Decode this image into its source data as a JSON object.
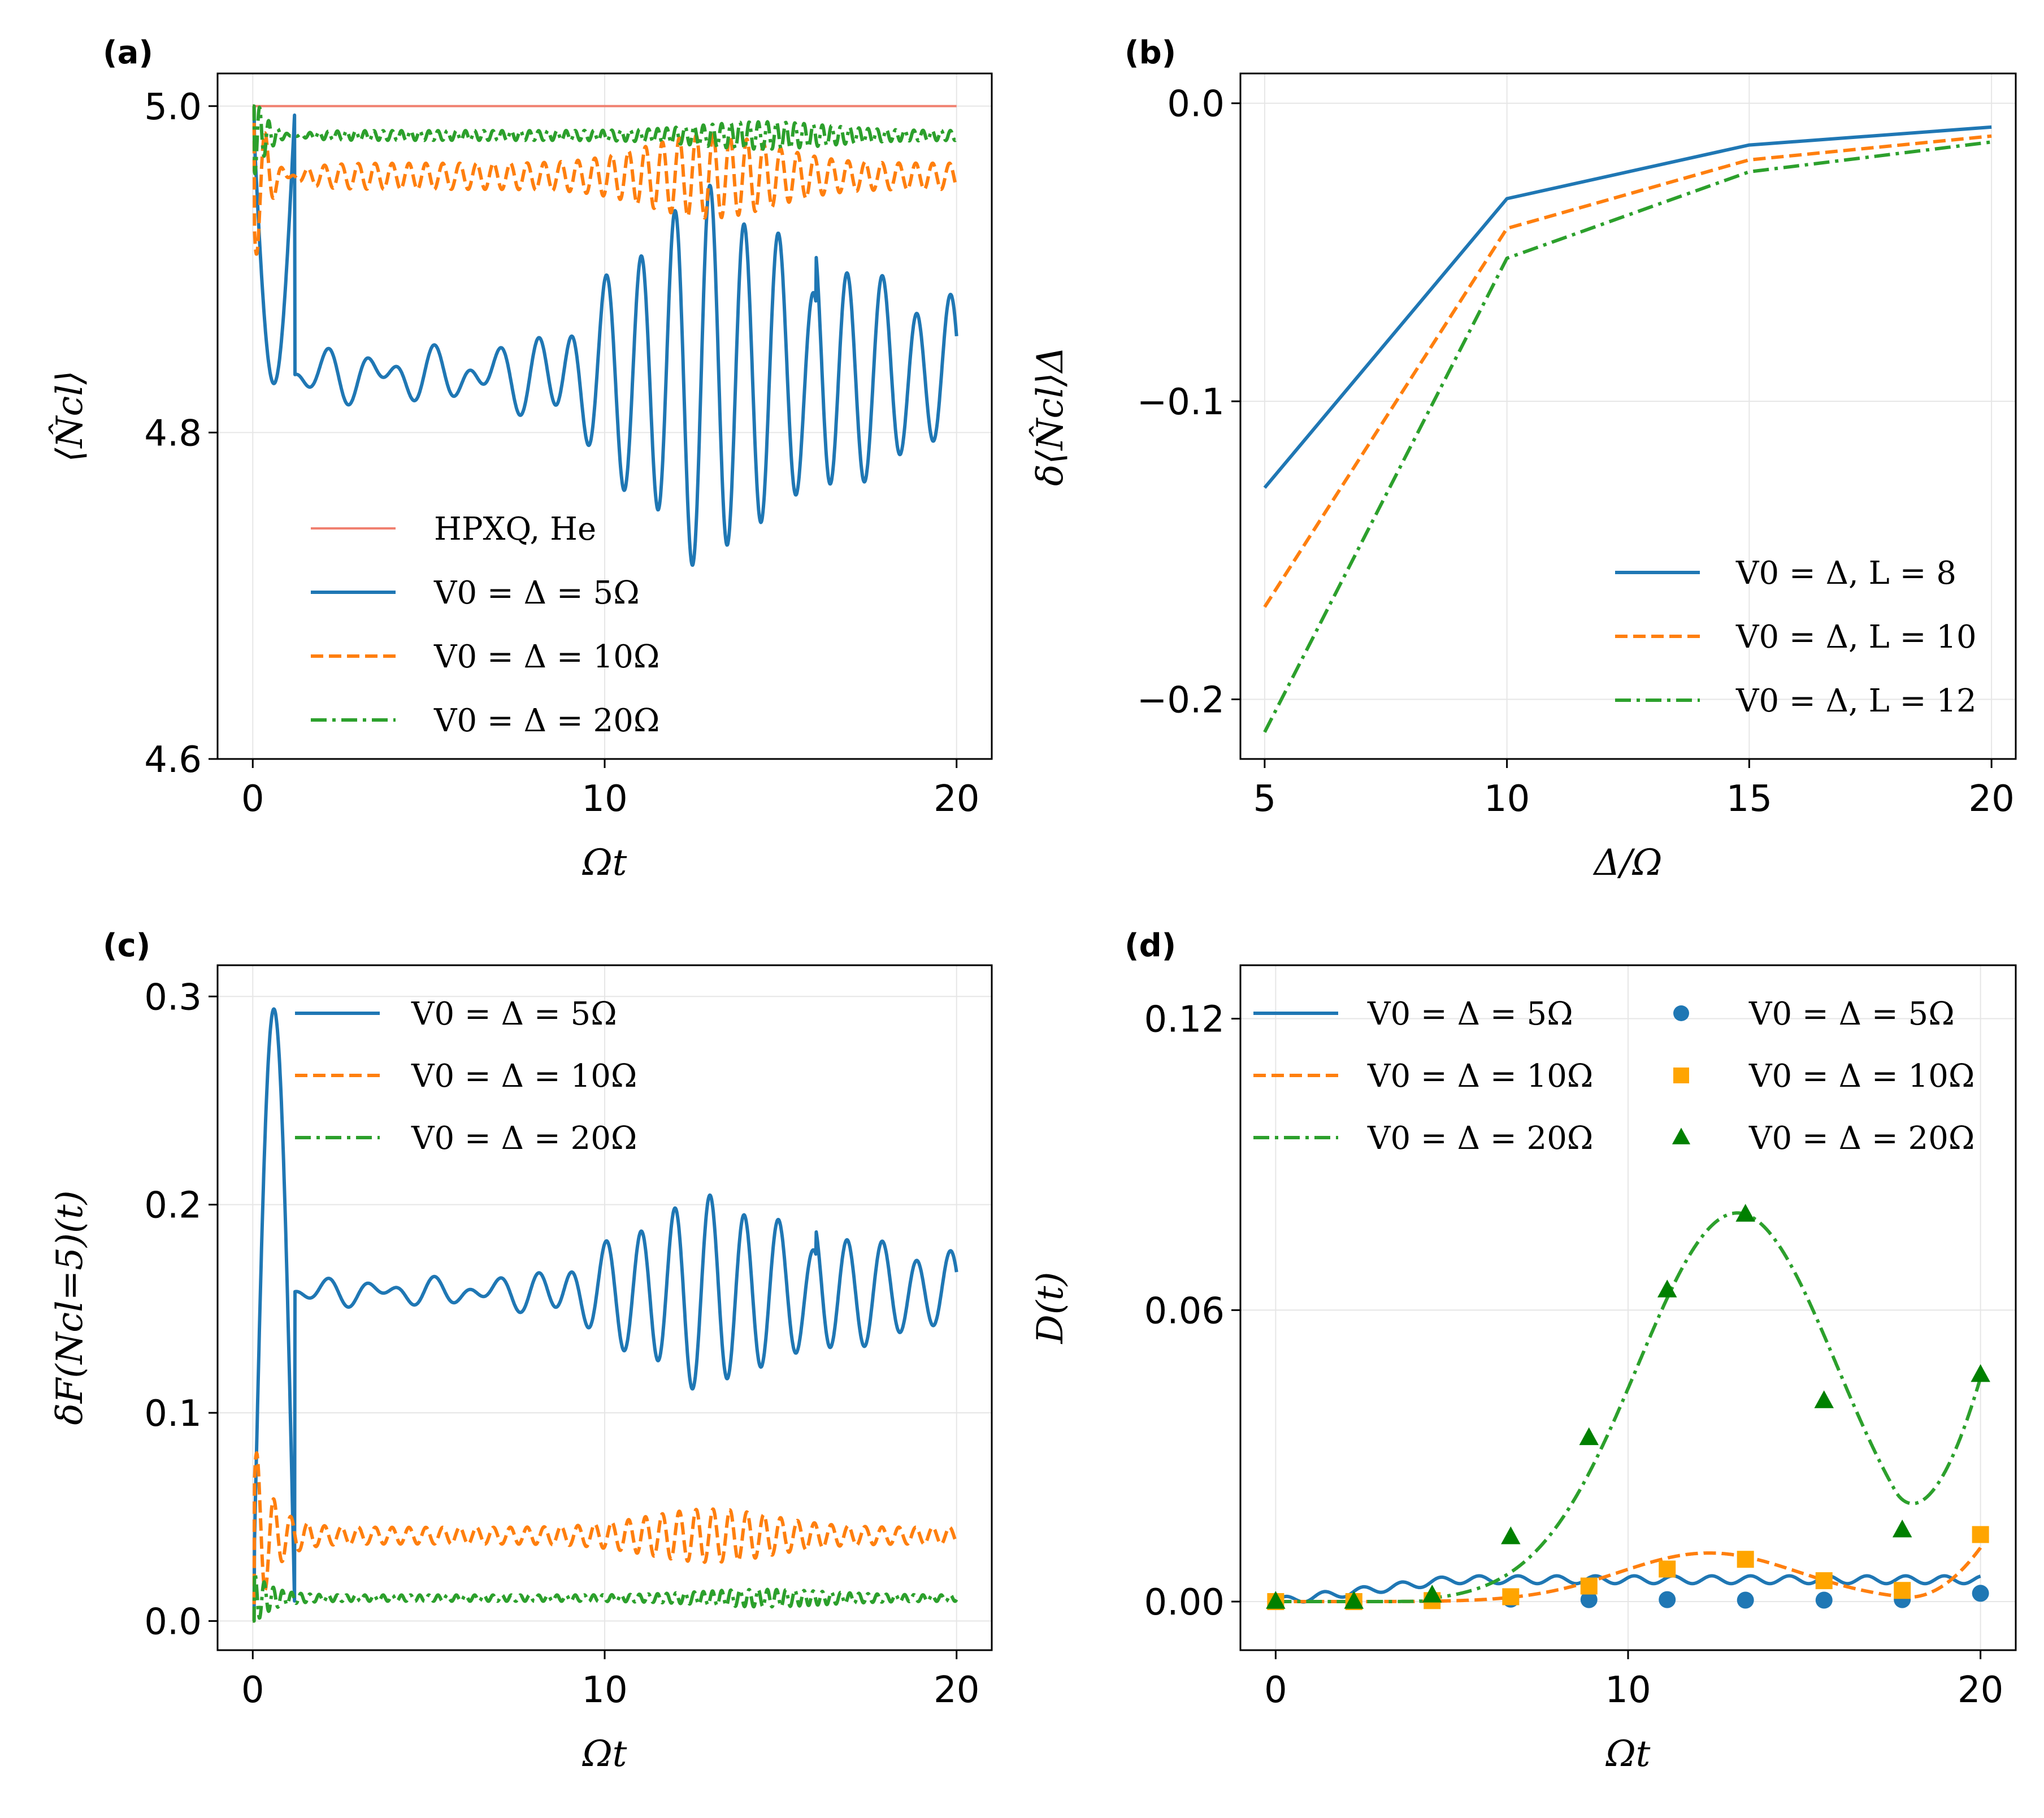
{
  "colors": {
    "blue": "#1f77b4",
    "orange": "#ff7f0e",
    "green": "#2ca02c",
    "salmon": "#f08070",
    "orange_marker": "#ffa500",
    "green_marker": "#008000"
  },
  "chart_data": [
    {
      "panel": "(a)",
      "type": "line",
      "xlabel": "Ωt",
      "ylabel": "⟨N̂cl⟩",
      "xlim": [
        -1,
        21
      ],
      "ylim": [
        4.6,
        5.02
      ],
      "xticks": [
        0,
        10,
        20
      ],
      "xtick_labels": [
        "0",
        "10",
        "20"
      ],
      "yticks": [
        4.6,
        4.8,
        5.0
      ],
      "ytick_labels": [
        "4.6",
        "4.8",
        "5.0"
      ],
      "legend_position": "lower-left",
      "series": [
        {
          "name": "HPXQ, He",
          "legend": "HPXQ, He",
          "style": "thin",
          "color": "#f08070",
          "base": 5.0,
          "kind": "flat"
        },
        {
          "name": "V0=Δ = 5Ω",
          "legend": "V0 = Δ = 5Ω",
          "style": "solid",
          "color": "#1f77b4",
          "base": 4.835,
          "kind": "osc5",
          "amp": 0.03,
          "dip": 0.17
        },
        {
          "name": "V0=Δ = 10Ω",
          "legend": "V0 = Δ = 10Ω",
          "style": "dashed",
          "color": "#ff7f0e",
          "base": 4.957,
          "kind": "osc10",
          "amp": 0.008,
          "dip": 0.07
        },
        {
          "name": "V0=Δ = 20Ω",
          "legend": "V0 = Δ = 20Ω",
          "style": "dashdot",
          "color": "#2ca02c",
          "base": 4.982,
          "kind": "osc20",
          "amp": 0.003,
          "dip": 0.03
        }
      ]
    },
    {
      "panel": "(b)",
      "type": "line",
      "xlabel": "Δ/Ω",
      "ylabel": "δ⟨N̂cl⟩Δ",
      "xlim": [
        4.5,
        20.5
      ],
      "ylim": [
        -0.22,
        0.01
      ],
      "xticks": [
        5,
        10,
        15,
        20
      ],
      "xtick_labels": [
        "5",
        "10",
        "15",
        "20"
      ],
      "yticks": [
        -0.2,
        -0.1,
        0.0
      ],
      "ytick_labels": [
        "−0.2",
        "−0.1",
        "0.0"
      ],
      "legend_position": "lower-right",
      "x": [
        5,
        10,
        15,
        20
      ],
      "series": [
        {
          "name": "V0=Δ, L=8",
          "legend": "V0 = Δ, L = 8",
          "style": "solid",
          "color": "#1f77b4",
          "values": [
            -0.129,
            -0.032,
            -0.014,
            -0.008
          ]
        },
        {
          "name": "V0=Δ, L=10",
          "legend": "V0 = Δ, L = 10",
          "style": "dashed",
          "color": "#ff7f0e",
          "values": [
            -0.169,
            -0.042,
            -0.019,
            -0.011
          ]
        },
        {
          "name": "V0=Δ, L=12",
          "legend": "V0 = Δ, L = 12",
          "style": "dashdot",
          "color": "#2ca02c",
          "values": [
            -0.211,
            -0.052,
            -0.023,
            -0.013
          ]
        }
      ]
    },
    {
      "panel": "(c)",
      "type": "line",
      "xlabel": "Ωt",
      "ylabel": "δF(Ncl=5)(t)",
      "xlim": [
        -1,
        21
      ],
      "ylim": [
        -0.014,
        0.315
      ],
      "xticks": [
        0,
        10,
        20
      ],
      "xtick_labels": [
        "0",
        "10",
        "20"
      ],
      "yticks": [
        0.0,
        0.1,
        0.2,
        0.3
      ],
      "ytick_labels": [
        "0.0",
        "0.1",
        "0.2",
        "0.3"
      ],
      "legend_position": "top-left",
      "series": [
        {
          "name": "V0=Δ = 5Ω",
          "legend": "V0 = Δ = 5Ω",
          "style": "solid",
          "color": "#1f77b4",
          "base": 0.158,
          "kind": "osc5",
          "amp": 0.012,
          "dip": 0.14
        },
        {
          "name": "V0=Δ = 10Ω",
          "legend": "V0 = Δ = 10Ω",
          "style": "dashed",
          "color": "#ff7f0e",
          "base": 0.041,
          "kind": "osc10",
          "amp": 0.004,
          "dip": 0.045
        },
        {
          "name": "V0=Δ = 20Ω",
          "legend": "V0 = Δ = 20Ω",
          "style": "dashdot",
          "color": "#2ca02c",
          "base": 0.011,
          "kind": "osc20",
          "amp": 0.0015,
          "dip": 0.012
        }
      ]
    },
    {
      "panel": "(d)",
      "type": "line",
      "xlabel": "Ωt",
      "ylabel": "D(t)",
      "xlim": [
        -1,
        21
      ],
      "ylim": [
        -0.01,
        0.131
      ],
      "xticks": [
        0,
        10,
        20
      ],
      "xtick_labels": [
        "0",
        "10",
        "20"
      ],
      "yticks": [
        0.0,
        0.06,
        0.12
      ],
      "ytick_labels": [
        "0.00",
        "0.06",
        "0.12"
      ],
      "legend_position": "top",
      "series": [
        {
          "name": "V0=Δ = 5Ω",
          "legend": "V0 = Δ = 5Ω",
          "style": "solid",
          "color": "#1f77b4",
          "kind": "d5"
        },
        {
          "name": "V0=Δ = 10Ω",
          "legend": "V0 = Δ = 10Ω",
          "style": "dashed",
          "color": "#ff7f0e",
          "kind": "d10"
        },
        {
          "name": "V0=Δ = 20Ω",
          "legend": "V0 = Δ = 20Ω",
          "style": "dashdot",
          "color": "#2ca02c",
          "kind": "d20"
        }
      ],
      "markers": {
        "x": [
          0,
          2.22,
          4.44,
          6.67,
          8.89,
          11.11,
          13.33,
          15.56,
          17.78,
          20
        ],
        "series": [
          {
            "name": "V0=Δ = 5Ω (markers)",
            "legend": "V0 = Δ = 5Ω",
            "marker": "circle",
            "color": "#1f77b4",
            "values": [
              0.0,
              0.0,
              0.0003,
              0.0005,
              0.0004,
              0.0004,
              0.0003,
              0.0003,
              0.0004,
              0.0017
            ]
          },
          {
            "name": "V0=Δ = 10Ω (markers)",
            "legend": "V0 = Δ = 10Ω",
            "marker": "square",
            "color": "#ffa500",
            "values": [
              0.0,
              0.0,
              0.0002,
              0.001,
              0.0032,
              0.0067,
              0.0087,
              0.0043,
              0.0023,
              0.0138
            ]
          },
          {
            "name": "V0=Δ = 20Ω (markers)",
            "legend": "V0 = Δ = 20Ω",
            "marker": "triangle",
            "color": "#008000",
            "values": [
              0.0,
              0.0,
              0.0013,
              0.0133,
              0.0337,
              0.0641,
              0.0797,
              0.0413,
              0.0147,
              0.0467
            ]
          }
        ]
      }
    }
  ]
}
